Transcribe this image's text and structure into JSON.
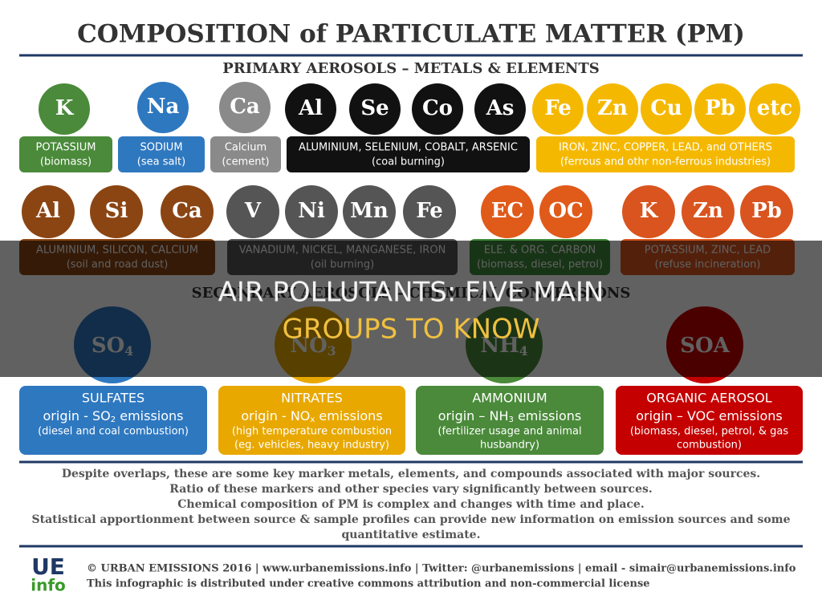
{
  "title": "COMPOSITION of PARTICULATE MATTER (PM)",
  "primary_heading": "PRIMARY AEROSOLS – METALS & ELEMENTS",
  "primary_groups": [
    {
      "symbols": [
        "K"
      ],
      "label": [
        "POTASSIUM",
        "(biomass)"
      ]
    },
    {
      "symbols": [
        "Na"
      ],
      "label": [
        "SODIUM",
        "(sea salt)"
      ]
    },
    {
      "symbols": [
        "Ca"
      ],
      "label": [
        "Calcium",
        "(cement)"
      ]
    },
    {
      "symbols": [
        "Al",
        "Se",
        "Co",
        "As"
      ],
      "label": [
        "ALUMINIUM, SELENIUM, COBALT, ARSENIC",
        "(coal burning)"
      ]
    },
    {
      "symbols": [
        "Fe",
        "Zn",
        "Cu",
        "Pb",
        "etc"
      ],
      "label": [
        "IRON, ZINC, COPPER, LEAD, and OTHERS",
        "(ferrous and othr non-ferrous industries)"
      ]
    },
    {
      "symbols": [
        "Al",
        "Si",
        "Ca"
      ],
      "label": [
        "ALUMINIUM, SILICON, CALCIUM",
        "(soil and road dust)"
      ]
    },
    {
      "symbols": [
        "V",
        "Ni",
        "Mn",
        "Fe"
      ],
      "label": [
        "VANADIUM, NICKEL, MANGANESE, IRON",
        "(oil burning)"
      ]
    },
    {
      "symbols": [
        "EC",
        "OC"
      ],
      "label": [
        "ELE. & ORG. CARBON",
        "(biomass, diesel, petrol)"
      ]
    },
    {
      "symbols": [
        "K",
        "Zn",
        "Pb"
      ],
      "label": [
        "POTASSIUM, ZINC, LEAD",
        "(refuse incineration)"
      ]
    }
  ],
  "secondary_heading": "SECONDARY AEROSOLS – CHEMICAL CONVERSIONS",
  "secondary_groups": [
    {
      "symbol": [
        "SO",
        "4"
      ],
      "name": "SULFATES",
      "origin": [
        "origin - SO",
        "2",
        " emissions"
      ],
      "detail": [
        "(diesel and coal combustion)"
      ]
    },
    {
      "symbol": [
        "NO",
        "3"
      ],
      "name": "NITRATES",
      "origin": [
        "origin - NO",
        "x",
        " emissions"
      ],
      "detail": [
        "(high temperature combustion",
        "(eg. vehicles, heavy industry)"
      ]
    },
    {
      "symbol": [
        "NH",
        "4"
      ],
      "name": "AMMONIUM",
      "origin": [
        "origin – NH",
        "3",
        " emissions"
      ],
      "detail": [
        "(fertilizer usage and animal",
        "husbandry)"
      ]
    },
    {
      "symbol": [
        "SOA"
      ],
      "name": "ORGANIC AEROSOL",
      "origin": [
        "origin – VOC emissions"
      ],
      "detail": [
        "(biomass, diesel, petrol, & gas",
        "combustion)"
      ]
    }
  ],
  "notes": [
    "Despite overlaps, these are some key marker metals, elements, and compounds associated with major sources.",
    "Ratio of these markers and other species vary significantly between sources.",
    "Chemical composition of PM is complex and changes with time and place.",
    "Statistical apportionment between source & sample profiles can provide new information on emission sources and some",
    "quantitative estimate."
  ],
  "logo": [
    "UE",
    "info"
  ],
  "footer": [
    "© URBAN EMISSIONS 2016 | www.urbanemissions.info | Twitter: @urbanemissions | email - simair@urbanemissions.info",
    "This infographic is distributed under creative commons attribution and non-commercial license"
  ],
  "overlay": [
    "AIR POLLUTANTS: FIVE MAIN",
    "GROUPS TO KNOW"
  ]
}
